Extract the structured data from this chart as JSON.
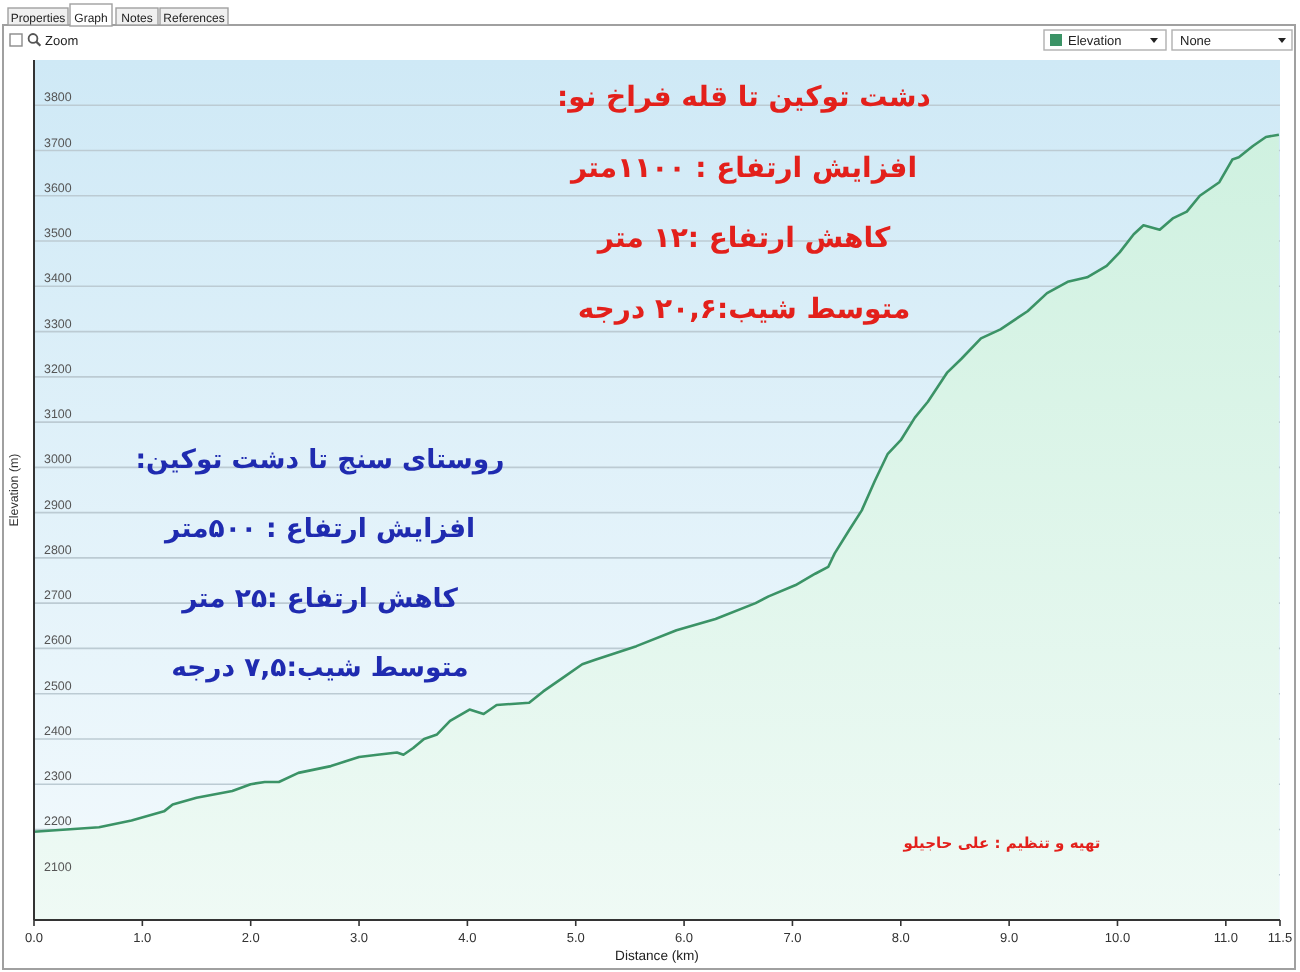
{
  "chart_data": {
    "type": "area",
    "xlabel": "Distance (km)",
    "ylabel": "Elevation (m)",
    "x": [
      0,
      0.3,
      0.6,
      0.9,
      1.2,
      1.28,
      1.5,
      1.83,
      2.0,
      2.13,
      2.26,
      2.44,
      2.74,
      2.87,
      3.0,
      3.17,
      3.35,
      3.41,
      3.5,
      3.6,
      3.72,
      3.84,
      4.02,
      4.15,
      4.27,
      4.57,
      4.7,
      4.88,
      5.06,
      5.18,
      5.37,
      5.56,
      5.93,
      6.29,
      6.66,
      6.78,
      7.03,
      7.21,
      7.33,
      7.39,
      7.52,
      7.64,
      7.76,
      7.88,
      8.0,
      8.13,
      8.25,
      8.43,
      8.56,
      8.74,
      8.92,
      9.17,
      9.35,
      9.54,
      9.72,
      9.9,
      10.02,
      10.15,
      10.24,
      10.39,
      10.51,
      10.64,
      10.76,
      10.94,
      11.06,
      11.12,
      11.25,
      11.37,
      11.49
    ],
    "series": [
      {
        "name": "Elevation",
        "color": "#3b9366",
        "values": [
          2195,
          2200,
          2205,
          2220,
          2240,
          2255,
          2270,
          2285,
          2300,
          2305,
          2305,
          2325,
          2340,
          2350,
          2360,
          2365,
          2370,
          2365,
          2380,
          2400,
          2410,
          2440,
          2465,
          2455,
          2475,
          2480,
          2505,
          2535,
          2565,
          2575,
          2590,
          2605,
          2640,
          2665,
          2700,
          2715,
          2740,
          2765,
          2780,
          2810,
          2860,
          2905,
          2970,
          3030,
          3060,
          3110,
          3145,
          3210,
          3240,
          3285,
          3305,
          3345,
          3385,
          3410,
          3420,
          3445,
          3475,
          3515,
          3535,
          3525,
          3550,
          3565,
          3600,
          3630,
          3680,
          3685,
          3710,
          3730,
          3735
        ]
      }
    ],
    "xlim": [
      0,
      11.5
    ],
    "ylim": [
      2000,
      3900
    ],
    "xticks": [
      {
        "value": 0,
        "label": "0.0"
      },
      {
        "value": 1,
        "label": "1.0"
      },
      {
        "value": 2,
        "label": "2.0"
      },
      {
        "value": 3,
        "label": "3.0"
      },
      {
        "value": 4,
        "label": "4.0"
      },
      {
        "value": 5,
        "label": "5.0"
      },
      {
        "value": 6,
        "label": "6.0"
      },
      {
        "value": 7,
        "label": "7.0"
      },
      {
        "value": 8,
        "label": "8.0"
      },
      {
        "value": 9,
        "label": "9.0"
      },
      {
        "value": 10,
        "label": "10.0"
      },
      {
        "value": 11,
        "label": "11.0"
      },
      11.5
    ],
    "yticks": [
      2100,
      2200,
      2300,
      2400,
      2500,
      2600,
      2700,
      2800,
      2900,
      3000,
      3100,
      3200,
      3300,
      3400,
      3500,
      3600,
      3700,
      3800
    ],
    "grid": "y",
    "legend": "top right",
    "annotations": [
      "دشت توکین تا قله فراخ نو:",
      "افزایش ارتفاع : ۱۱۰۰متر",
      "کاهش ارتفاع :۱۲ متر",
      "متوسط شیب:۲۰,۶ درجه",
      "روستای سنج تا دشت توکین:",
      "افزایش ارتفاع : ۵۰۰متر",
      "کاهش ارتفاع :۲۵ متر",
      "متوسط شیب:۷,۵ درجه",
      "تهیه و تنظیم : علی حاجیلو",
      "Properties",
      "Graph",
      "Notes",
      "References",
      "Zoom",
      "None"
    ]
  }
}
